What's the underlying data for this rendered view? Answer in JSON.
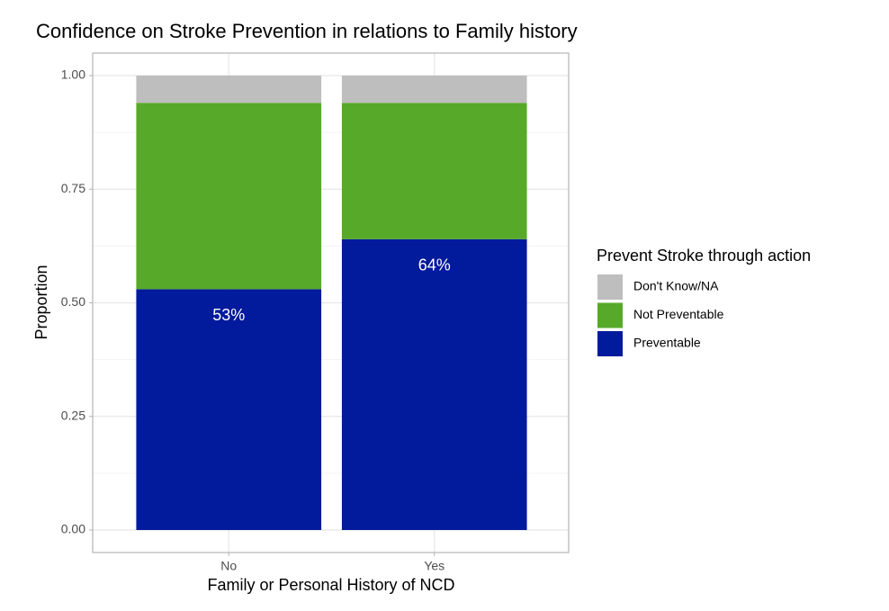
{
  "chart_data": {
    "type": "stacked_bar",
    "title": "Confidence on Stroke Prevention in relations to Family history",
    "x_label": "Family or Personal History of NCD",
    "y_label": "Proportion",
    "legend_title": "Prevent Stroke through action",
    "legend_position": "right",
    "grid": true,
    "categories": [
      "No",
      "Yes"
    ],
    "series": [
      {
        "name": "Preventable",
        "color": "#021a9c",
        "values": [
          0.53,
          0.64
        ],
        "value_labels": [
          "53%",
          "64%"
        ]
      },
      {
        "name": "Not Preventable",
        "color": "#57a92a",
        "values": [
          0.41,
          0.3
        ]
      },
      {
        "name": "Don't Know/NA",
        "color": "#bebebe",
        "values": [
          0.06,
          0.06
        ]
      }
    ],
    "ylim": [
      0,
      1
    ],
    "yticks": [
      {
        "value": 0,
        "label": "0.00"
      },
      {
        "value": 0.25,
        "label": "0.25"
      },
      {
        "value": 0.5,
        "label": "0.50"
      },
      {
        "value": 0.75,
        "label": "0.75"
      },
      {
        "value": 1,
        "label": "1.00"
      }
    ]
  }
}
